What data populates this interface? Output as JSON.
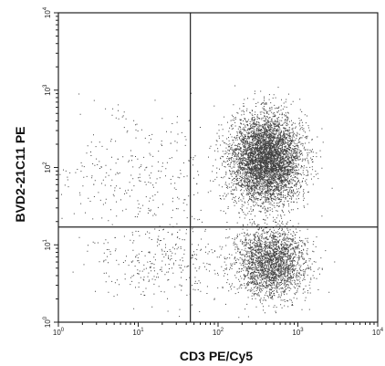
{
  "chart_data": {
    "type": "scatter",
    "title": "",
    "xlabel": "CD3 PE/Cy5",
    "ylabel": "BVD2-21C11 PE",
    "xscale": "log",
    "yscale": "log",
    "xlim": [
      1,
      10000
    ],
    "ylim": [
      1,
      10000
    ],
    "x_ticks": [
      1,
      10,
      100,
      1000,
      10000
    ],
    "y_ticks": [
      1,
      10,
      100,
      1000,
      10000
    ],
    "x_tick_labels": [
      {
        "base": "10",
        "exp": "0"
      },
      {
        "base": "10",
        "exp": "1"
      },
      {
        "base": "10",
        "exp": "2"
      },
      {
        "base": "10",
        "exp": "3"
      },
      {
        "base": "10",
        "exp": "4"
      }
    ],
    "y_tick_labels": [
      {
        "base": "10",
        "exp": "0"
      },
      {
        "base": "10",
        "exp": "1"
      },
      {
        "base": "10",
        "exp": "2"
      },
      {
        "base": "10",
        "exp": "3"
      },
      {
        "base": "10",
        "exp": "4"
      }
    ],
    "quadrant_gates": {
      "x": 45,
      "y": 17
    },
    "grid": false,
    "legend": "none",
    "point_color": "#000000",
    "populations": [
      {
        "center_x": 400,
        "center_y": 130,
        "spread_log_x": 0.22,
        "spread_log_y": 0.28,
        "count": 5200
      },
      {
        "center_x": 450,
        "center_y": 6,
        "spread_log_x": 0.22,
        "spread_log_y": 0.22,
        "count": 2400
      },
      {
        "center_x": 10,
        "center_y": 60,
        "spread_log_x": 0.6,
        "spread_log_y": 0.5,
        "count": 350
      },
      {
        "center_x": 20,
        "center_y": 6,
        "spread_log_x": 0.45,
        "spread_log_y": 0.25,
        "count": 300
      }
    ]
  }
}
